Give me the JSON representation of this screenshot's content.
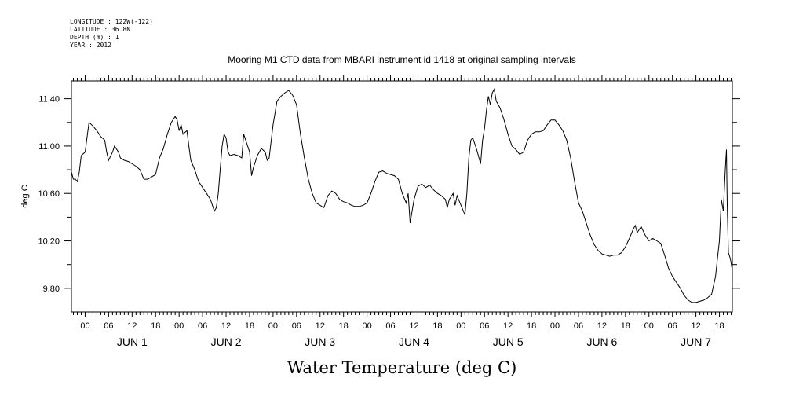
{
  "chart_data": {
    "type": "line",
    "metadata_lines": [
      "LONGITUDE : 122W(-122)",
      "LATITUDE : 36.8N",
      "DEPTH (m) : 1",
      "YEAR : 2012"
    ],
    "title": "Mooring M1 CTD data from MBARI instrument id 1418 at original sampling intervals",
    "xlabel": "Water Temperature (deg C)",
    "ylabel": "deg C",
    "ylim": [
      9.6,
      11.55
    ],
    "xlim_hours": [
      -3.5,
      165.3
    ],
    "y_ticks": [
      "9.80",
      "10.20",
      "10.60",
      "11.00",
      "11.40"
    ],
    "x_hour_labels": [
      "00",
      "06",
      "12",
      "18"
    ],
    "days": [
      "JUN 1",
      "JUN 2",
      "JUN 3",
      "JUN 4",
      "JUN 5",
      "JUN 6",
      "JUN 7"
    ],
    "grid": false,
    "series": [
      {
        "points": [
          [
            -3.5,
            10.78
          ],
          [
            -3,
            10.72
          ],
          [
            -2.5,
            10.72
          ],
          [
            -2,
            10.7
          ],
          [
            -1.5,
            10.78
          ],
          [
            -1,
            10.92
          ],
          [
            0,
            10.95
          ],
          [
            0.5,
            11.08
          ],
          [
            1,
            11.2
          ],
          [
            2,
            11.17
          ],
          [
            3,
            11.13
          ],
          [
            4,
            11.08
          ],
          [
            5,
            11.05
          ],
          [
            5.5,
            10.95
          ],
          [
            6,
            10.88
          ],
          [
            7,
            10.95
          ],
          [
            7.5,
            11.0
          ],
          [
            8.5,
            10.95
          ],
          [
            9,
            10.9
          ],
          [
            10,
            10.88
          ],
          [
            11,
            10.87
          ],
          [
            12,
            10.85
          ],
          [
            13,
            10.83
          ],
          [
            14,
            10.8
          ],
          [
            14.5,
            10.76
          ],
          [
            15,
            10.72
          ],
          [
            16,
            10.72
          ],
          [
            17,
            10.74
          ],
          [
            18,
            10.76
          ],
          [
            19,
            10.9
          ],
          [
            20,
            10.98
          ],
          [
            21,
            11.1
          ],
          [
            22,
            11.2
          ],
          [
            23,
            11.25
          ],
          [
            23.5,
            11.22
          ],
          [
            24,
            11.13
          ],
          [
            24.5,
            11.18
          ],
          [
            25,
            11.1
          ],
          [
            26,
            11.13
          ],
          [
            26.5,
            11.0
          ],
          [
            27,
            10.88
          ],
          [
            28,
            10.8
          ],
          [
            29,
            10.7
          ],
          [
            30,
            10.65
          ],
          [
            31,
            10.6
          ],
          [
            32,
            10.55
          ],
          [
            33,
            10.45
          ],
          [
            33.5,
            10.48
          ],
          [
            34,
            10.6
          ],
          [
            34.5,
            10.8
          ],
          [
            35,
            11.0
          ],
          [
            35.5,
            11.1
          ],
          [
            36,
            11.07
          ],
          [
            36.5,
            10.95
          ],
          [
            37,
            10.92
          ],
          [
            38,
            10.93
          ],
          [
            39,
            10.92
          ],
          [
            40,
            10.9
          ],
          [
            40.5,
            11.1
          ],
          [
            41,
            11.05
          ],
          [
            42,
            10.95
          ],
          [
            42.5,
            10.75
          ],
          [
            43,
            10.82
          ],
          [
            44,
            10.92
          ],
          [
            45,
            10.98
          ],
          [
            46,
            10.95
          ],
          [
            46.5,
            10.88
          ],
          [
            47,
            10.9
          ],
          [
            48,
            11.18
          ],
          [
            49,
            11.38
          ],
          [
            50,
            11.42
          ],
          [
            51,
            11.45
          ],
          [
            52,
            11.47
          ],
          [
            53,
            11.43
          ],
          [
            54,
            11.35
          ],
          [
            55,
            11.1
          ],
          [
            56,
            10.9
          ],
          [
            57,
            10.72
          ],
          [
            58,
            10.6
          ],
          [
            59,
            10.52
          ],
          [
            60,
            10.5
          ],
          [
            61,
            10.48
          ],
          [
            62,
            10.58
          ],
          [
            63,
            10.62
          ],
          [
            64,
            10.6
          ],
          [
            65,
            10.55
          ],
          [
            66,
            10.53
          ],
          [
            67,
            10.52
          ],
          [
            68,
            10.5
          ],
          [
            69,
            10.49
          ],
          [
            70,
            10.49
          ],
          [
            71,
            10.5
          ],
          [
            72,
            10.52
          ],
          [
            73,
            10.6
          ],
          [
            74,
            10.7
          ],
          [
            75,
            10.78
          ],
          [
            76,
            10.79
          ],
          [
            77,
            10.77
          ],
          [
            78,
            10.76
          ],
          [
            79,
            10.75
          ],
          [
            80,
            10.72
          ],
          [
            81,
            10.6
          ],
          [
            82,
            10.52
          ],
          [
            82.5,
            10.6
          ],
          [
            83,
            10.35
          ],
          [
            84,
            10.55
          ],
          [
            85,
            10.66
          ],
          [
            86,
            10.68
          ],
          [
            87,
            10.65
          ],
          [
            88,
            10.67
          ],
          [
            89,
            10.63
          ],
          [
            90,
            10.6
          ],
          [
            91,
            10.58
          ],
          [
            92,
            10.55
          ],
          [
            92.5,
            10.48
          ],
          [
            93,
            10.55
          ],
          [
            94,
            10.6
          ],
          [
            94.5,
            10.5
          ],
          [
            95,
            10.58
          ],
          [
            96,
            10.5
          ],
          [
            97,
            10.42
          ],
          [
            97.5,
            10.6
          ],
          [
            98,
            10.9
          ],
          [
            98.5,
            11.05
          ],
          [
            99,
            11.07
          ],
          [
            100,
            10.97
          ],
          [
            101,
            10.85
          ],
          [
            101.5,
            11.05
          ],
          [
            102,
            11.15
          ],
          [
            102.5,
            11.3
          ],
          [
            103,
            11.42
          ],
          [
            103.5,
            11.35
          ],
          [
            104,
            11.45
          ],
          [
            104.5,
            11.48
          ],
          [
            105,
            11.38
          ],
          [
            106,
            11.32
          ],
          [
            107,
            11.22
          ],
          [
            108,
            11.1
          ],
          [
            109,
            11.0
          ],
          [
            110,
            10.97
          ],
          [
            111,
            10.93
          ],
          [
            112,
            10.95
          ],
          [
            113,
            11.05
          ],
          [
            114,
            11.1
          ],
          [
            115,
            11.12
          ],
          [
            116,
            11.12
          ],
          [
            117,
            11.13
          ],
          [
            118,
            11.18
          ],
          [
            119,
            11.22
          ],
          [
            120,
            11.22
          ],
          [
            121,
            11.18
          ],
          [
            122,
            11.13
          ],
          [
            123,
            11.05
          ],
          [
            124,
            10.9
          ],
          [
            125,
            10.7
          ],
          [
            126,
            10.52
          ],
          [
            127,
            10.45
          ],
          [
            128,
            10.35
          ],
          [
            129,
            10.25
          ],
          [
            130,
            10.17
          ],
          [
            131,
            10.12
          ],
          [
            132,
            10.09
          ],
          [
            133,
            10.08
          ],
          [
            134,
            10.07
          ],
          [
            135,
            10.08
          ],
          [
            136,
            10.08
          ],
          [
            137,
            10.1
          ],
          [
            138,
            10.15
          ],
          [
            139,
            10.22
          ],
          [
            140,
            10.3
          ],
          [
            140.5,
            10.33
          ],
          [
            141,
            10.27
          ],
          [
            142,
            10.32
          ],
          [
            143,
            10.25
          ],
          [
            144,
            10.2
          ],
          [
            145,
            10.22
          ],
          [
            146,
            10.2
          ],
          [
            147,
            10.18
          ],
          [
            148,
            10.08
          ],
          [
            149,
            9.97
          ],
          [
            150,
            9.9
          ],
          [
            151,
            9.85
          ],
          [
            152,
            9.8
          ],
          [
            153,
            9.74
          ],
          [
            154,
            9.7
          ],
          [
            155,
            9.68
          ],
          [
            156,
            9.68
          ],
          [
            157,
            9.69
          ],
          [
            158,
            9.7
          ],
          [
            159,
            9.72
          ],
          [
            160,
            9.75
          ],
          [
            161,
            9.9
          ],
          [
            161.5,
            10.05
          ],
          [
            162,
            10.2
          ],
          [
            162.5,
            10.55
          ],
          [
            163,
            10.45
          ],
          [
            163.5,
            10.8
          ],
          [
            163.8,
            10.97
          ],
          [
            164,
            10.5
          ],
          [
            164.3,
            10.1
          ],
          [
            164.8,
            10.05
          ],
          [
            165.3,
            9.95
          ]
        ]
      }
    ]
  }
}
